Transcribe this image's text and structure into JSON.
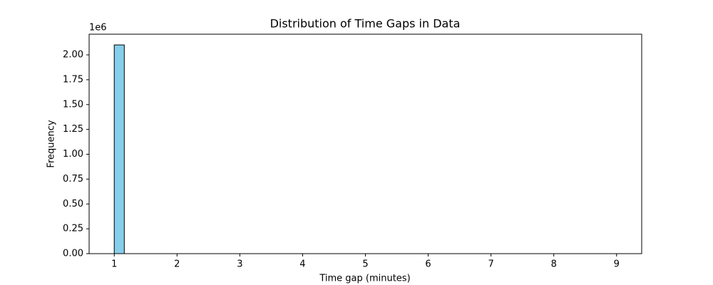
{
  "chart_data": {
    "type": "histogram",
    "title": "Distribution of Time Gaps in Data",
    "x_label": "Time gap (minutes)",
    "y_label": "Frequency",
    "y_offset_label": "1e6",
    "bins": [
      1,
      1.16,
      1.32,
      1.48,
      1.64,
      1.8,
      1.96,
      2.12,
      2.28,
      2.44,
      2.6,
      2.76,
      2.92,
      3.08,
      3.24,
      3.4,
      3.56,
      3.72,
      3.88,
      4.04,
      4.2,
      4.36,
      4.52,
      4.68,
      4.84,
      5,
      5.16,
      5.32,
      5.48,
      5.64,
      5.8,
      5.96,
      6.12,
      6.28,
      6.44,
      6.6,
      6.76,
      6.92,
      7.08,
      7.24,
      7.4,
      7.56,
      7.72,
      7.88,
      8.04,
      8.2,
      8.36,
      8.52,
      8.68,
      8.84,
      9
    ],
    "values": [
      2100000,
      0,
      0,
      0,
      0,
      0,
      0,
      0,
      0,
      0,
      0,
      0,
      0,
      0,
      0,
      0,
      0,
      0,
      0,
      0,
      0,
      0,
      0,
      0,
      0,
      0,
      0,
      0,
      0,
      0,
      0,
      0,
      0,
      0,
      0,
      0,
      0,
      0,
      0,
      0,
      0,
      0,
      0,
      0,
      0,
      0,
      0,
      0,
      0,
      0
    ],
    "color": "#87ceeb",
    "edgecolor": "#000000",
    "xlim": [
      0.6,
      9.4
    ],
    "xticks": [
      1,
      2,
      3,
      4,
      5,
      6,
      7,
      8,
      9
    ],
    "ylim": [
      0,
      2208000
    ],
    "yticks": [
      {
        "value": 0,
        "label": "0.00"
      },
      {
        "value": 250000,
        "label": "0.25"
      },
      {
        "value": 500000,
        "label": "0.50"
      },
      {
        "value": 750000,
        "label": "0.75"
      },
      {
        "value": 1000000,
        "label": "1.00"
      },
      {
        "value": 1250000,
        "label": "1.25"
      },
      {
        "value": 1500000,
        "label": "1.50"
      },
      {
        "value": 1750000,
        "label": "1.75"
      },
      {
        "value": 2000000,
        "label": "2.00"
      }
    ],
    "grid": false
  }
}
